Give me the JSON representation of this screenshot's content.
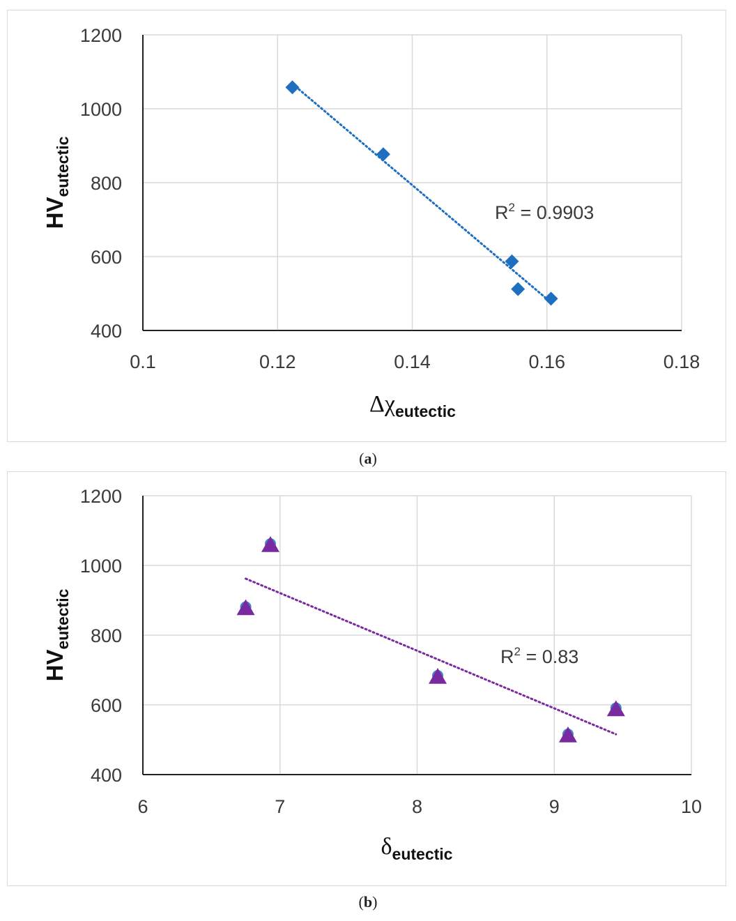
{
  "figure": {
    "caption_a": {
      "open": "(",
      "letter": "a",
      "close": ")"
    },
    "caption_b": {
      "open": "(",
      "letter": "b",
      "close": ")"
    }
  },
  "chart_data": [
    {
      "type": "scatter",
      "title": "",
      "xlabel": {
        "main": "Δχ",
        "sub": "eutectic"
      },
      "ylabel": {
        "main": "HV",
        "sub": "eutectic"
      },
      "xlim": [
        0.1,
        0.18
      ],
      "ylim": [
        400,
        1200
      ],
      "xticks": [
        0.1,
        0.12,
        0.14,
        0.16,
        0.18
      ],
      "xtick_labels": [
        "0.1",
        "0.12",
        "0.14",
        "0.16",
        "0.18"
      ],
      "yticks": [
        400,
        600,
        800,
        1000,
        1200
      ],
      "ytick_labels": [
        "400",
        "600",
        "800",
        "1000",
        "1200"
      ],
      "grid": true,
      "marker": "diamond",
      "marker_color": "#1f6fc1",
      "points": [
        {
          "x": 0.1222,
          "y": 1058
        },
        {
          "x": 0.1357,
          "y": 877
        },
        {
          "x": 0.1548,
          "y": 587
        },
        {
          "x": 0.1557,
          "y": 512
        },
        {
          "x": 0.1606,
          "y": 486
        }
      ],
      "trendline": {
        "type": "linear",
        "color": "#1f6fc1",
        "style": "dotted"
      },
      "annotation": {
        "text_prefix": "R",
        "text_sup": "2",
        "text_suffix": " = 0.9903"
      }
    },
    {
      "type": "scatter",
      "title": "",
      "xlabel": {
        "main": "δ",
        "sub": "eutectic"
      },
      "ylabel": {
        "main": "HV",
        "sub": "eutectic"
      },
      "xlim": [
        6,
        10
      ],
      "ylim": [
        400,
        1200
      ],
      "xticks": [
        6,
        7,
        8,
        9,
        10
      ],
      "xtick_labels": [
        "6",
        "7",
        "8",
        "9",
        "10"
      ],
      "yticks": [
        400,
        600,
        800,
        1000,
        1200
      ],
      "ytick_labels": [
        "400",
        "600",
        "800",
        "1000",
        "1200"
      ],
      "grid": true,
      "marker": "triangle",
      "marker_color": "#7a2aa0",
      "marker_underlay_color": "#3f86c8",
      "points": [
        {
          "x": 6.93,
          "y": 1058
        },
        {
          "x": 6.75,
          "y": 877
        },
        {
          "x": 8.15,
          "y": 680
        },
        {
          "x": 9.45,
          "y": 587
        },
        {
          "x": 9.1,
          "y": 512
        }
      ],
      "trendline": {
        "type": "linear",
        "color": "#7a2aa0",
        "style": "dotted"
      },
      "annotation": {
        "text_prefix": "R",
        "text_sup": "2",
        "text_suffix": " = 0.83"
      }
    }
  ]
}
